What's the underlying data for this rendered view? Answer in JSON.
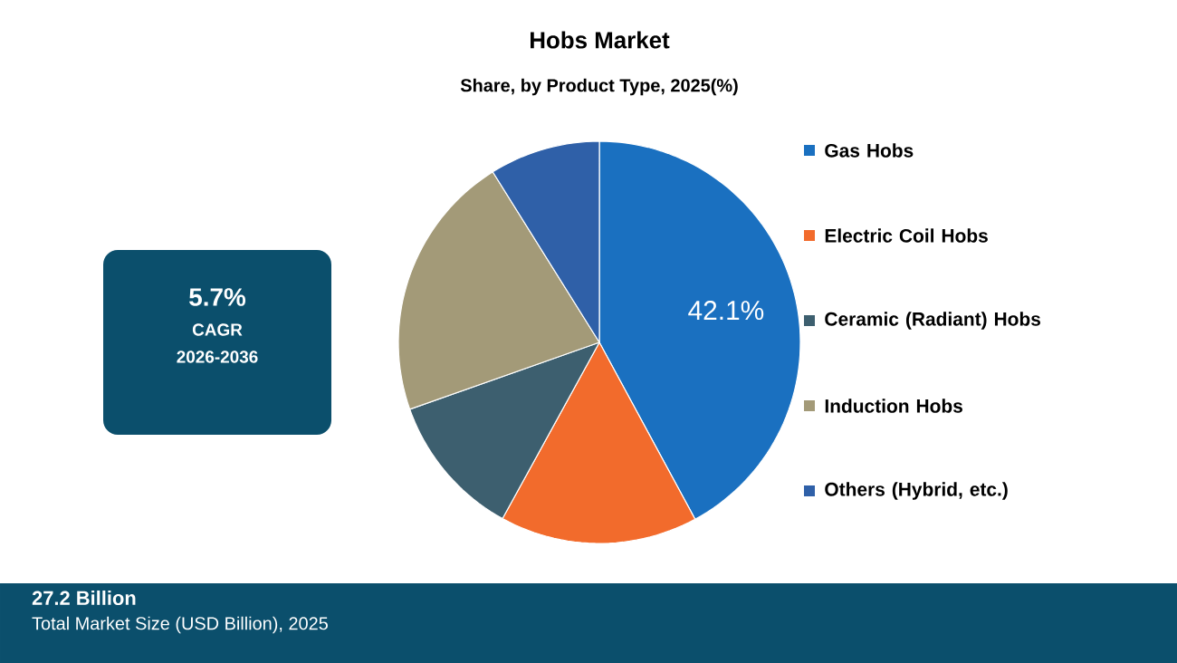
{
  "chart_data": {
    "type": "pie",
    "title": "Hobs Market",
    "subtitle": "Share, by Product Type, 2025(%)",
    "categories": [
      "Gas Hobs",
      "Electric Coil Hobs",
      "Ceramic (Radiant) Hobs",
      "Induction Hobs",
      "Others (Hybrid, etc.)"
    ],
    "values": [
      42.1,
      15.9,
      11.6,
      21.5,
      8.9
    ],
    "colors": [
      "#1a70c0",
      "#f26b2c",
      "#3d5f6f",
      "#a39a78",
      "#2f60a8"
    ],
    "value_labels": [
      "42.1%",
      null,
      null,
      null,
      null
    ],
    "legend": "right",
    "annotations": [
      "5.7%",
      "CAGR",
      "2026-2036",
      "27.2 Billion",
      "Total Market Size (USD Billion), 2025"
    ]
  }
}
